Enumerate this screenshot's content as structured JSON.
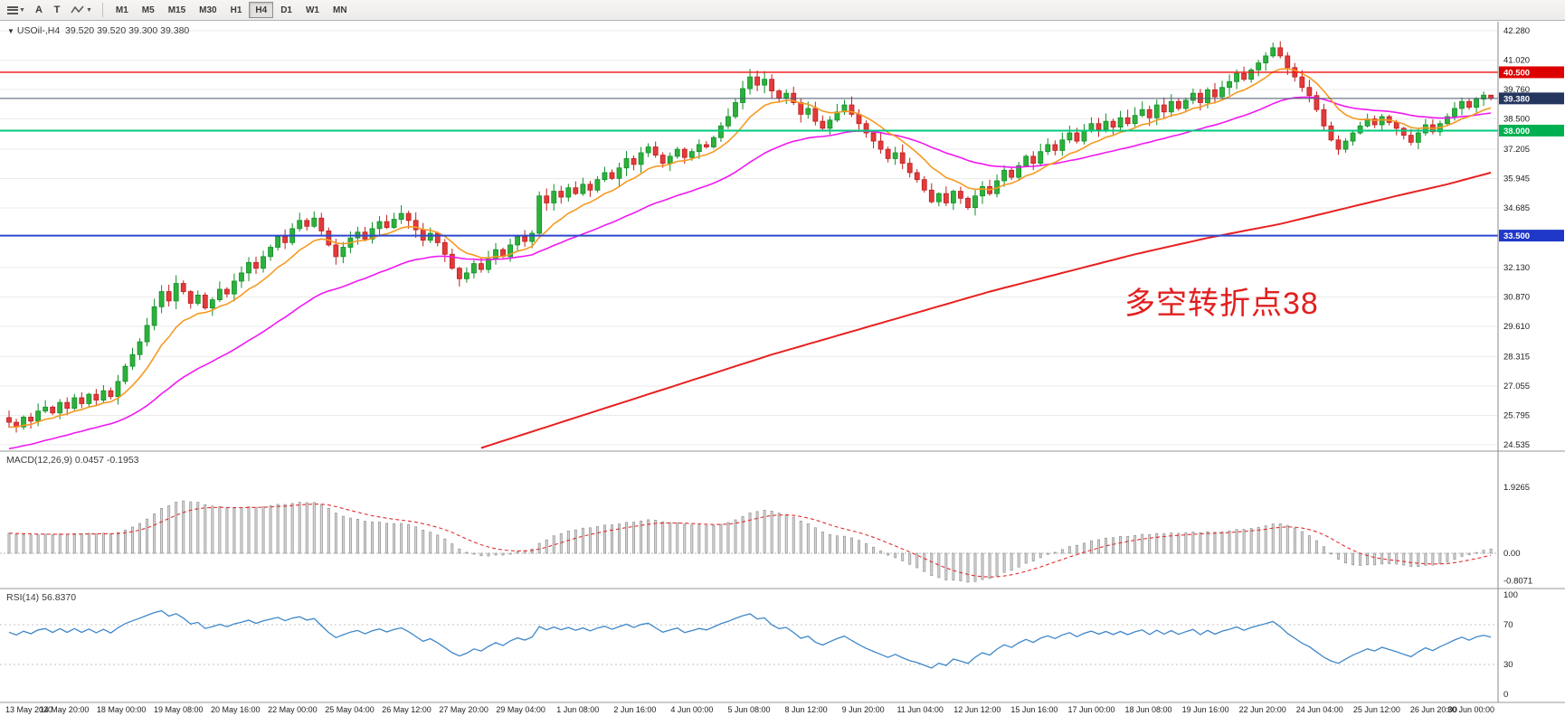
{
  "toolbar": {
    "tools": [
      "A",
      "T"
    ],
    "tool_icon_names": [
      "charts-menu-icon",
      "cursor-tool",
      "text-tool",
      "line-style-icon"
    ],
    "timeframes": [
      "M1",
      "M5",
      "M15",
      "M30",
      "H1",
      "H4",
      "D1",
      "W1",
      "MN"
    ],
    "active_timeframe": "H4"
  },
  "symbol": {
    "title": "USOil-,H4",
    "ohlc": "39.520 39.520 39.300 39.380"
  },
  "annotation": {
    "text": "多空转折点38",
    "color": "#e21f1f"
  },
  "indicators": {
    "macd": {
      "header": "MACD(12,26,9)",
      "values_text": "0.0457 -0.1953",
      "axis_labels": [
        "1.9265",
        "0.00",
        "-0.8071"
      ],
      "axis_values": [
        1.9265,
        0,
        -0.8071
      ],
      "periods": [
        12,
        26,
        9
      ]
    },
    "rsi": {
      "header": "RSI(14)",
      "value_text": "56.8370",
      "axis_labels": [
        "100",
        "70",
        "30",
        "0"
      ],
      "axis_values": [
        100,
        70,
        30,
        0
      ],
      "dotted_levels": [
        70,
        30
      ],
      "period": 14
    }
  },
  "price_axis": {
    "tick_labels": [
      "42.280",
      "41.020",
      "39.760",
      "38.500",
      "37.205",
      "35.945",
      "34.685",
      "32.130",
      "30.870",
      "29.610",
      "28.315",
      "27.055",
      "25.795",
      "24.535"
    ]
  },
  "levels": [
    {
      "label": "40.500",
      "value": 40.5,
      "line_color": "#ee1111",
      "badge_color": "#dd0000",
      "width": 1.4
    },
    {
      "label": "38.000",
      "value": 38.0,
      "line_color": "#00c97e",
      "badge_color": "#00b050",
      "width": 2
    },
    {
      "label": "33.500",
      "value": 33.5,
      "line_color": "#2e48cf",
      "badge_color": "#2038c8",
      "width": 2
    }
  ],
  "current_price": {
    "label": "39.380",
    "value": 39.38,
    "line_color": "#4a566e",
    "badge_color": "#24365e"
  },
  "chart_data": {
    "type": "candlestick",
    "symbol": "USOil-",
    "timeframe": "H4",
    "price_range": [
      24.535,
      42.28
    ],
    "first_open": 25.7,
    "closes": [
      25.5,
      25.3,
      25.72,
      25.55,
      25.98,
      26.15,
      25.9,
      26.35,
      26.1,
      26.55,
      26.3,
      26.7,
      26.45,
      26.85,
      26.6,
      27.25,
      27.9,
      28.4,
      28.95,
      29.65,
      30.45,
      31.1,
      30.7,
      31.45,
      31.1,
      30.6,
      30.95,
      30.4,
      30.75,
      31.2,
      31.0,
      31.55,
      31.9,
      32.35,
      32.1,
      32.6,
      33.0,
      33.45,
      33.2,
      33.8,
      34.15,
      33.9,
      34.25,
      33.7,
      33.1,
      32.6,
      33.0,
      33.4,
      33.65,
      33.35,
      33.8,
      34.1,
      33.85,
      34.2,
      34.45,
      34.15,
      33.75,
      33.3,
      33.6,
      33.2,
      32.7,
      32.1,
      31.65,
      31.9,
      32.3,
      32.05,
      32.5,
      32.9,
      32.6,
      33.1,
      33.45,
      33.25,
      33.6,
      35.2,
      34.9,
      35.4,
      35.15,
      35.55,
      35.3,
      35.7,
      35.45,
      35.9,
      36.2,
      35.95,
      36.4,
      36.8,
      36.55,
      37.05,
      37.3,
      36.95,
      36.6,
      36.9,
      37.2,
      36.85,
      37.1,
      37.4,
      37.3,
      37.7,
      38.2,
      38.6,
      39.2,
      39.8,
      40.3,
      39.95,
      40.2,
      39.7,
      39.4,
      39.6,
      39.2,
      38.7,
      38.95,
      38.4,
      38.1,
      38.45,
      38.8,
      39.1,
      38.7,
      38.3,
      37.9,
      37.55,
      37.2,
      36.8,
      37.05,
      36.6,
      36.2,
      35.9,
      35.45,
      34.95,
      35.3,
      34.9,
      35.4,
      35.1,
      34.7,
      35.2,
      35.6,
      35.3,
      35.85,
      36.3,
      36.0,
      36.5,
      36.9,
      36.6,
      37.1,
      37.4,
      37.15,
      37.6,
      37.9,
      37.55,
      38.0,
      38.3,
      38.05,
      38.4,
      38.15,
      38.55,
      38.3,
      38.65,
      38.9,
      38.55,
      39.1,
      38.8,
      39.25,
      38.95,
      39.3,
      39.6,
      39.2,
      39.75,
      39.45,
      39.85,
      40.1,
      40.45,
      40.2,
      40.6,
      40.9,
      41.2,
      41.55,
      41.2,
      40.7,
      40.3,
      39.85,
      39.5,
      38.9,
      38.2,
      37.6,
      37.2,
      37.55,
      37.9,
      38.2,
      38.5,
      38.25,
      38.6,
      38.35,
      38.1,
      37.8,
      37.5,
      37.9,
      38.25,
      37.95,
      38.3,
      38.6,
      38.95,
      39.25,
      39.0,
      39.35,
      39.52,
      39.38
    ],
    "time_labels": [
      "13 May 2020",
      "14 May 20:00",
      "18 May 00:00",
      "19 May 08:00",
      "20 May 16:00",
      "22 May 00:00",
      "25 May 04:00",
      "26 May 12:00",
      "27 May 20:00",
      "29 May 04:00",
      "1 Jun 08:00",
      "2 Jun 16:00",
      "4 Jun 00:00",
      "5 Jun 08:00",
      "8 Jun 12:00",
      "9 Jun 20:00",
      "11 Jun 04:00",
      "12 Jun 12:00",
      "15 Jun 16:00",
      "17 Jun 00:00",
      "18 Jun 08:00",
      "19 Jun 16:00",
      "22 Jun 20:00",
      "24 Jun 04:00",
      "25 Jun 12:00",
      "26 Jun 20:00",
      "30 Jun 00:00"
    ],
    "ma_fast_period": 10,
    "ma_mid_period": 34,
    "ma_slow_points": [
      [
        65,
        24.4
      ],
      [
        75,
        25.4
      ],
      [
        85,
        26.4
      ],
      [
        95,
        27.4
      ],
      [
        105,
        28.4
      ],
      [
        115,
        29.3
      ],
      [
        125,
        30.2
      ],
      [
        135,
        31.1
      ],
      [
        145,
        31.9
      ],
      [
        155,
        32.7
      ],
      [
        165,
        33.4
      ],
      [
        175,
        34.0
      ],
      [
        183,
        34.6
      ],
      [
        191,
        35.2
      ],
      [
        198,
        35.7
      ],
      [
        204,
        36.2
      ]
    ],
    "colors": {
      "bull": "#2eb13c",
      "bull_border": "#0f8f27",
      "bear": "#e23b3b",
      "bear_border": "#bf1e1e",
      "ma_fast": "#f59a23",
      "ma_mid": "#f019f0",
      "ma_slow": "#e82020",
      "macd_hist": "#d6d6d6",
      "macd_hist_border": "#8f8f8f",
      "macd_signal": "#e03030",
      "rsi_line": "#3f87c9"
    }
  }
}
